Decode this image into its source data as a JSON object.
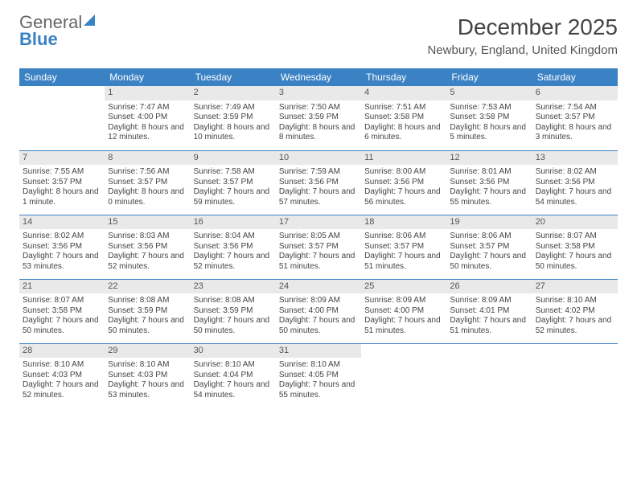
{
  "brand": {
    "line1": "General",
    "line2": "Blue"
  },
  "title": "December 2025",
  "location": "Newbury, England, United Kingdom",
  "colors": {
    "accent": "#3b82c4",
    "daybg": "#e9e9e9",
    "text": "#444444"
  },
  "day_headers": [
    "Sunday",
    "Monday",
    "Tuesday",
    "Wednesday",
    "Thursday",
    "Friday",
    "Saturday"
  ],
  "weeks": [
    [
      {
        "n": "",
        "sr": "",
        "ss": "",
        "dl": ""
      },
      {
        "n": "1",
        "sr": "Sunrise: 7:47 AM",
        "ss": "Sunset: 4:00 PM",
        "dl": "Daylight: 8 hours and 12 minutes."
      },
      {
        "n": "2",
        "sr": "Sunrise: 7:49 AM",
        "ss": "Sunset: 3:59 PM",
        "dl": "Daylight: 8 hours and 10 minutes."
      },
      {
        "n": "3",
        "sr": "Sunrise: 7:50 AM",
        "ss": "Sunset: 3:59 PM",
        "dl": "Daylight: 8 hours and 8 minutes."
      },
      {
        "n": "4",
        "sr": "Sunrise: 7:51 AM",
        "ss": "Sunset: 3:58 PM",
        "dl": "Daylight: 8 hours and 6 minutes."
      },
      {
        "n": "5",
        "sr": "Sunrise: 7:53 AM",
        "ss": "Sunset: 3:58 PM",
        "dl": "Daylight: 8 hours and 5 minutes."
      },
      {
        "n": "6",
        "sr": "Sunrise: 7:54 AM",
        "ss": "Sunset: 3:57 PM",
        "dl": "Daylight: 8 hours and 3 minutes."
      }
    ],
    [
      {
        "n": "7",
        "sr": "Sunrise: 7:55 AM",
        "ss": "Sunset: 3:57 PM",
        "dl": "Daylight: 8 hours and 1 minute."
      },
      {
        "n": "8",
        "sr": "Sunrise: 7:56 AM",
        "ss": "Sunset: 3:57 PM",
        "dl": "Daylight: 8 hours and 0 minutes."
      },
      {
        "n": "9",
        "sr": "Sunrise: 7:58 AM",
        "ss": "Sunset: 3:57 PM",
        "dl": "Daylight: 7 hours and 59 minutes."
      },
      {
        "n": "10",
        "sr": "Sunrise: 7:59 AM",
        "ss": "Sunset: 3:56 PM",
        "dl": "Daylight: 7 hours and 57 minutes."
      },
      {
        "n": "11",
        "sr": "Sunrise: 8:00 AM",
        "ss": "Sunset: 3:56 PM",
        "dl": "Daylight: 7 hours and 56 minutes."
      },
      {
        "n": "12",
        "sr": "Sunrise: 8:01 AM",
        "ss": "Sunset: 3:56 PM",
        "dl": "Daylight: 7 hours and 55 minutes."
      },
      {
        "n": "13",
        "sr": "Sunrise: 8:02 AM",
        "ss": "Sunset: 3:56 PM",
        "dl": "Daylight: 7 hours and 54 minutes."
      }
    ],
    [
      {
        "n": "14",
        "sr": "Sunrise: 8:02 AM",
        "ss": "Sunset: 3:56 PM",
        "dl": "Daylight: 7 hours and 53 minutes."
      },
      {
        "n": "15",
        "sr": "Sunrise: 8:03 AM",
        "ss": "Sunset: 3:56 PM",
        "dl": "Daylight: 7 hours and 52 minutes."
      },
      {
        "n": "16",
        "sr": "Sunrise: 8:04 AM",
        "ss": "Sunset: 3:56 PM",
        "dl": "Daylight: 7 hours and 52 minutes."
      },
      {
        "n": "17",
        "sr": "Sunrise: 8:05 AM",
        "ss": "Sunset: 3:57 PM",
        "dl": "Daylight: 7 hours and 51 minutes."
      },
      {
        "n": "18",
        "sr": "Sunrise: 8:06 AM",
        "ss": "Sunset: 3:57 PM",
        "dl": "Daylight: 7 hours and 51 minutes."
      },
      {
        "n": "19",
        "sr": "Sunrise: 8:06 AM",
        "ss": "Sunset: 3:57 PM",
        "dl": "Daylight: 7 hours and 50 minutes."
      },
      {
        "n": "20",
        "sr": "Sunrise: 8:07 AM",
        "ss": "Sunset: 3:58 PM",
        "dl": "Daylight: 7 hours and 50 minutes."
      }
    ],
    [
      {
        "n": "21",
        "sr": "Sunrise: 8:07 AM",
        "ss": "Sunset: 3:58 PM",
        "dl": "Daylight: 7 hours and 50 minutes."
      },
      {
        "n": "22",
        "sr": "Sunrise: 8:08 AM",
        "ss": "Sunset: 3:59 PM",
        "dl": "Daylight: 7 hours and 50 minutes."
      },
      {
        "n": "23",
        "sr": "Sunrise: 8:08 AM",
        "ss": "Sunset: 3:59 PM",
        "dl": "Daylight: 7 hours and 50 minutes."
      },
      {
        "n": "24",
        "sr": "Sunrise: 8:09 AM",
        "ss": "Sunset: 4:00 PM",
        "dl": "Daylight: 7 hours and 50 minutes."
      },
      {
        "n": "25",
        "sr": "Sunrise: 8:09 AM",
        "ss": "Sunset: 4:00 PM",
        "dl": "Daylight: 7 hours and 51 minutes."
      },
      {
        "n": "26",
        "sr": "Sunrise: 8:09 AM",
        "ss": "Sunset: 4:01 PM",
        "dl": "Daylight: 7 hours and 51 minutes."
      },
      {
        "n": "27",
        "sr": "Sunrise: 8:10 AM",
        "ss": "Sunset: 4:02 PM",
        "dl": "Daylight: 7 hours and 52 minutes."
      }
    ],
    [
      {
        "n": "28",
        "sr": "Sunrise: 8:10 AM",
        "ss": "Sunset: 4:03 PM",
        "dl": "Daylight: 7 hours and 52 minutes."
      },
      {
        "n": "29",
        "sr": "Sunrise: 8:10 AM",
        "ss": "Sunset: 4:03 PM",
        "dl": "Daylight: 7 hours and 53 minutes."
      },
      {
        "n": "30",
        "sr": "Sunrise: 8:10 AM",
        "ss": "Sunset: 4:04 PM",
        "dl": "Daylight: 7 hours and 54 minutes."
      },
      {
        "n": "31",
        "sr": "Sunrise: 8:10 AM",
        "ss": "Sunset: 4:05 PM",
        "dl": "Daylight: 7 hours and 55 minutes."
      },
      {
        "n": "",
        "sr": "",
        "ss": "",
        "dl": ""
      },
      {
        "n": "",
        "sr": "",
        "ss": "",
        "dl": ""
      },
      {
        "n": "",
        "sr": "",
        "ss": "",
        "dl": ""
      }
    ]
  ]
}
